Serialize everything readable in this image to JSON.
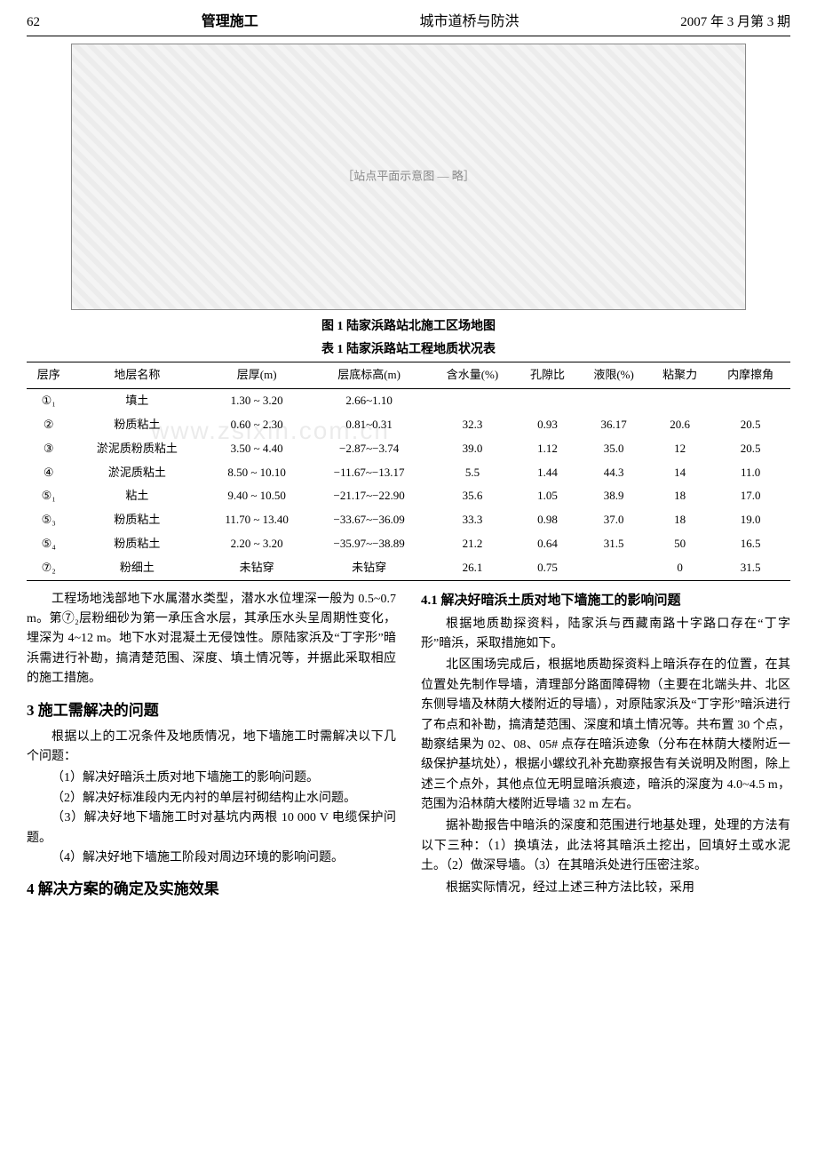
{
  "header": {
    "page_number": "62",
    "left": "管理施工",
    "center": "城市道桥与防洪",
    "right": "2007 年 3 月第 3 期"
  },
  "figure1": {
    "caption": "图 1  陆家浜路站北施工区场地图",
    "placeholder": "［站点平面示意图 — 略］"
  },
  "table1": {
    "caption": "表 1  陆家浜路站工程地质状况表",
    "columns": [
      "层序",
      "地层名称",
      "层厚(m)",
      "层底标高(m)",
      "含水量(%)",
      "孔隙比",
      "液限(%)",
      "粘聚力",
      "内摩擦角"
    ],
    "rows": [
      [
        "①₁",
        "填土",
        "1.30 ~ 3.20",
        "2.66~1.10",
        "",
        "",
        "",
        "",
        ""
      ],
      [
        "②",
        "粉质粘土",
        "0.60 ~ 2.30",
        "0.81~0.31",
        "32.3",
        "0.93",
        "36.17",
        "20.6",
        "20.5"
      ],
      [
        "③",
        "淤泥质粉质粘土",
        "3.50 ~ 4.40",
        "−2.87~−3.74",
        "39.0",
        "1.12",
        "35.0",
        "12",
        "20.5"
      ],
      [
        "④",
        "淤泥质粘土",
        "8.50 ~ 10.10",
        "−11.67~−13.17",
        "5.5",
        "1.44",
        "44.3",
        "14",
        "11.0"
      ],
      [
        "⑤₁",
        "粘土",
        "9.40 ~ 10.50",
        "−21.17~−22.90",
        "35.6",
        "1.05",
        "38.9",
        "18",
        "17.0"
      ],
      [
        "⑤₃",
        "粉质粘土",
        "11.70 ~ 13.40",
        "−33.67~−36.09",
        "33.3",
        "0.98",
        "37.0",
        "18",
        "19.0"
      ],
      [
        "⑤₄",
        "粉质粘土",
        "2.20 ~ 3.20",
        "−35.97~−38.89",
        "21.2",
        "0.64",
        "31.5",
        "50",
        "16.5"
      ],
      [
        "⑦₂",
        "粉细土",
        "未钻穿",
        "未钻穿",
        "26.1",
        "0.75",
        "",
        "0",
        "31.5"
      ]
    ]
  },
  "left_col": {
    "p1": "工程场地浅部地下水属潜水类型，潜水水位埋深一般为 0.5~0.7 m。第⑦₂层粉细砂为第一承压含水层，其承压水头呈周期性变化，埋深为 4~12 m。地下水对混凝土无侵蚀性。原陆家浜及“丁字形”暗浜需进行补勘，搞清楚范围、深度、填土情况等，并据此采取相应的施工措施。",
    "h3": "3  施工需解决的问题",
    "p3a": "根据以上的工况条件及地质情况，地下墙施工时需解决以下几个问题：",
    "li1": "（1）解决好暗浜土质对地下墙施工的影响问题。",
    "li2": "（2）解决好标准段内无内衬的单层衬砌结构止水问题。",
    "li3": "（3）解决好地下墙施工时对基坑内两根 10 000 V 电缆保护问题。",
    "li4": "（4）解决好地下墙施工阶段对周边环境的影响问题。",
    "h4": "4  解决方案的确定及实施效果"
  },
  "right_col": {
    "h41": "4.1 解决好暗浜土质对地下墙施工的影响问题",
    "p41a": "根据地质勘探资料，陆家浜与西藏南路十字路口存在“丁字形”暗浜，采取措施如下。",
    "p41b": "北区围场完成后，根据地质勘探资料上暗浜存在的位置，在其位置处先制作导墙，清理部分路面障碍物（主要在北端头井、北区东侧导墙及林荫大楼附近的导墙），对原陆家浜及“丁字形”暗浜进行了布点和补勘，搞清楚范围、深度和填土情况等。共布置 30 个点，勘察结果为 02、08、05# 点存在暗浜迹象（分布在林荫大楼附近一级保护基坑处），根据小螺纹孔补充勘察报告有关说明及附图，除上述三个点外，其他点位无明显暗浜痕迹，暗浜的深度为 4.0~4.5 m，范围为沿林荫大楼附近导墙 32 m 左右。",
    "p41c": "据补勘报告中暗浜的深度和范围进行地基处理，处理的方法有以下三种：（1）换填法，此法将其暗浜土挖出，回填好土或水泥土。（2）做深导墙。（3）在其暗浜处进行压密注浆。",
    "p41d": "根据实际情况，经过上述三种方法比较，采用"
  },
  "watermark": "www.zsixin.com.cn"
}
